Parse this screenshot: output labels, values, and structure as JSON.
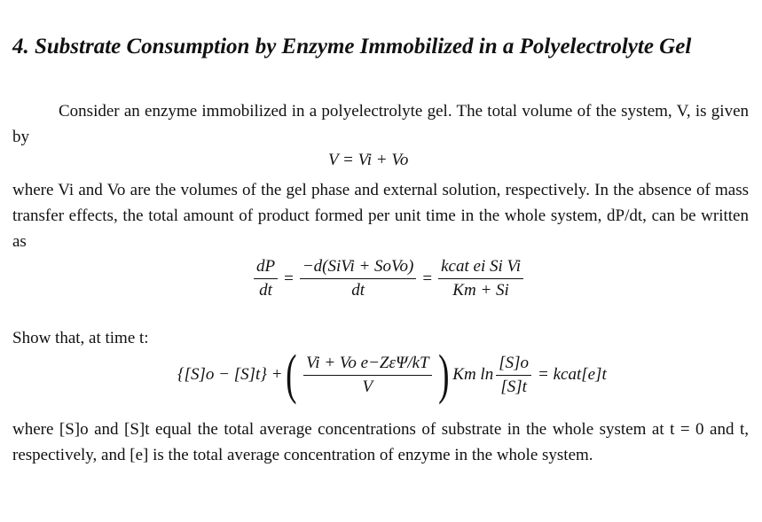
{
  "title": "4. Substrate Consumption by Enzyme Immobilized in a Polyelectrolyte Gel",
  "para1": "Consider an enzyme immobilized in a polyelectrolyte gel. The total volume of the system, V, is given by",
  "eq1": "V = Vi + Vo",
  "para2": "where Vi and Vo are the volumes of the gel phase and external solution, respectively. In the absence of mass transfer effects, the total amount of product formed per unit time in the whole system, dP/dt, can be written as",
  "eq2": {
    "lhs_num": "dP",
    "lhs_den": "dt",
    "mid_num": "−d(SiVi + SoVo)",
    "mid_den": "dt",
    "rhs_num": "kcat ei Si Vi",
    "rhs_den": "Km + Si"
  },
  "para3": "Show that, at time t:",
  "eq3": {
    "left": "{[S]o − [S]t} +",
    "paren_num": "Vi + Vo e−ZεΨ/kT",
    "paren_den": "V",
    "mid": "Km ln",
    "ln_num": "[S]o",
    "ln_den": "[S]t",
    "rhs": "= kcat[e]t"
  },
  "para4": "where [S]o and [S]t equal the total average concentrations of substrate in the whole system at t = 0 and t, respectively, and [e] is the total average concentration of enzyme in the whole system."
}
